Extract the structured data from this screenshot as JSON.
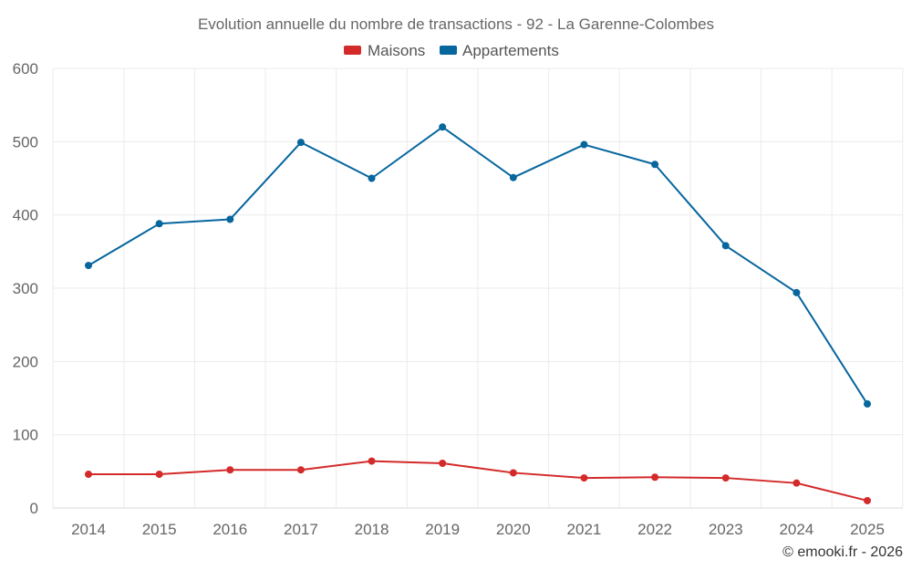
{
  "chart_data": {
    "type": "line",
    "title": "Evolution annuelle du nombre de transactions - 92 - La Garenne-Colombes",
    "xlabel": "",
    "ylabel": "",
    "categories": [
      "2014",
      "2015",
      "2016",
      "2017",
      "2018",
      "2019",
      "2020",
      "2021",
      "2022",
      "2023",
      "2024",
      "2025"
    ],
    "ylim": [
      0,
      600
    ],
    "yticks": [
      0,
      100,
      200,
      300,
      400,
      500,
      600
    ],
    "grid": true,
    "legend_position": "top-center",
    "series": [
      {
        "name": "Maisons",
        "color": "#d42a2a",
        "values": [
          46,
          46,
          52,
          52,
          64,
          61,
          48,
          41,
          42,
          41,
          34,
          10
        ]
      },
      {
        "name": "Appartements",
        "color": "#06669e",
        "values": [
          331,
          388,
          394,
          499,
          450,
          520,
          451,
          496,
          469,
          358,
          294,
          142
        ]
      }
    ],
    "credit": "© emooki.fr - 2026"
  }
}
